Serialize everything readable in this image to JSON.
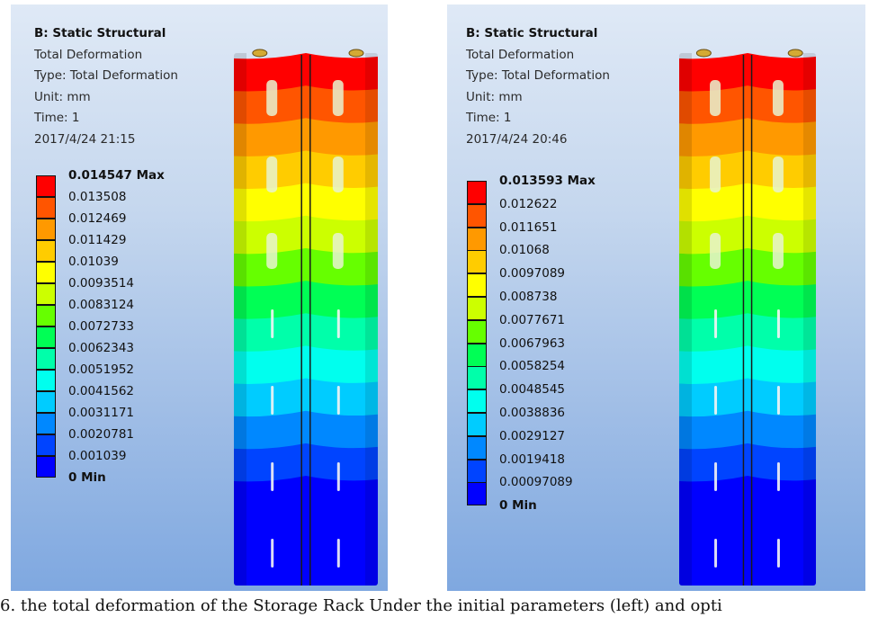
{
  "colors": {
    "contour": [
      "#ff0000",
      "#ff5500",
      "#ff9900",
      "#ffcc00",
      "#ffff00",
      "#ccff00",
      "#66ff00",
      "#00ff55",
      "#00ffaa",
      "#00ffee",
      "#00ccff",
      "#0088ff",
      "#0044ff",
      "#0000ff"
    ],
    "background_top": "#dfe9f6",
    "background_bottom": "#7fa8e0"
  },
  "left_panel": {
    "title": "B: Static Structural",
    "lines": [
      "Total Deformation",
      "Type: Total Deformation",
      "Unit: mm",
      "Time: 1",
      "2017/4/24 21:15"
    ],
    "legend": [
      "0.014547 Max",
      "0.013508",
      "0.012469",
      "0.011429",
      "0.01039",
      "0.0093514",
      "0.0083124",
      "0.0072733",
      "0.0062343",
      "0.0051952",
      "0.0041562",
      "0.0031171",
      "0.0020781",
      "0.001039",
      "0 Min"
    ]
  },
  "right_panel": {
    "title": "B: Static Structural",
    "lines": [
      "Total Deformation",
      "Type: Total Deformation",
      "Unit: mm",
      "Time: 1",
      "2017/4/24 20:46"
    ],
    "legend": [
      "0.013593 Max",
      "0.012622",
      "0.011651",
      "0.01068",
      "0.0097089",
      "0.008738",
      "0.0077671",
      "0.0067963",
      "0.0058254",
      "0.0048545",
      "0.0038836",
      "0.0029127",
      "0.0019418",
      "0.00097089",
      "0 Min"
    ]
  },
  "caption": "6. the total deformation of the Storage Rack Under the initial parameters (left) and opti"
}
